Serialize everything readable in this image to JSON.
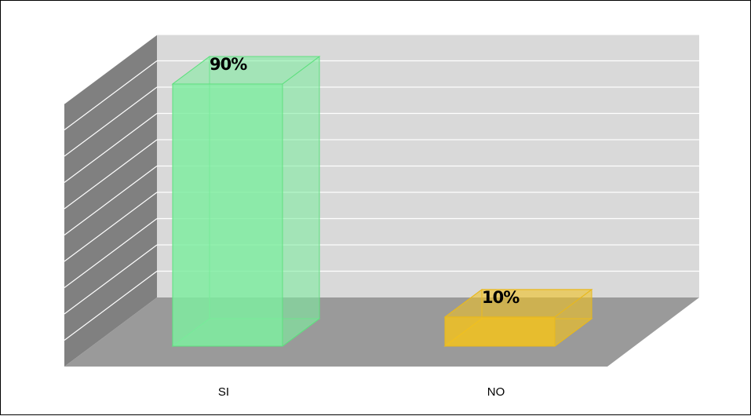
{
  "chart_data": {
    "type": "bar",
    "style": "3d-column",
    "categories": [
      "SI",
      "NO"
    ],
    "values": [
      90,
      10
    ],
    "data_labels": [
      "90%",
      "10%"
    ],
    "ylim": [
      0,
      100
    ],
    "grid": true,
    "legend": "none",
    "colors": {
      "bars": [
        "#7EEDA0",
        "#F2C21E"
      ],
      "bar_edges": [
        "#5FE07F",
        "#E8B81C"
      ],
      "back_wall": "#D9D9D9",
      "side_wall": "#808080",
      "floor": "#9A9A9A",
      "gridline": "#FFFFFF"
    }
  }
}
